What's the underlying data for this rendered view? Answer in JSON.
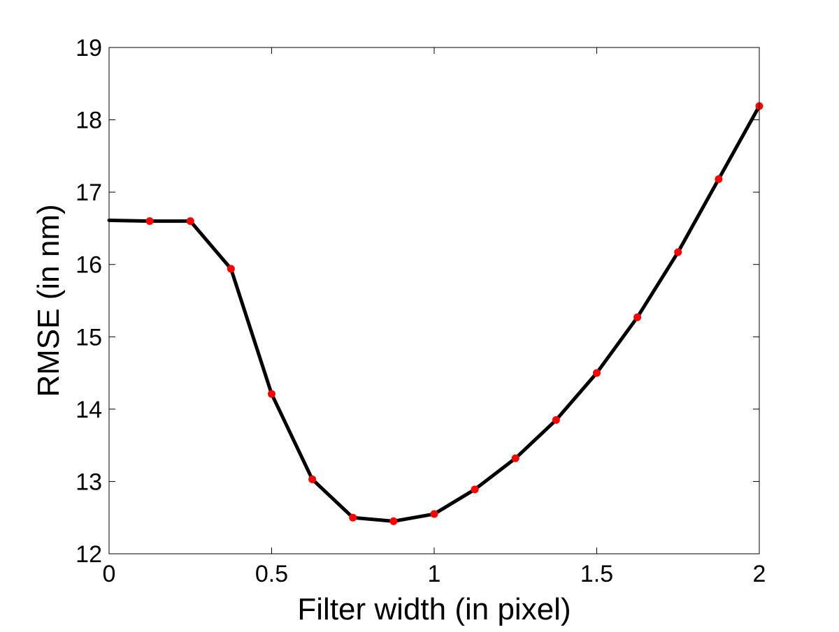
{
  "chart_data": {
    "type": "line",
    "title": "",
    "xlabel": "Filter width (in pixel)",
    "ylabel": "RMSE (in nm)",
    "xlim": [
      0,
      2
    ],
    "ylim": [
      12,
      19
    ],
    "xticks": [
      0,
      0.5,
      1,
      1.5,
      2
    ],
    "xtick_labels": [
      "0",
      "0.5",
      "1",
      "1.5",
      "2"
    ],
    "yticks": [
      12,
      13,
      14,
      15,
      16,
      17,
      18,
      19
    ],
    "ytick_labels": [
      "12",
      "13",
      "14",
      "15",
      "16",
      "17",
      "18",
      "19"
    ],
    "grid": false,
    "legend": "none",
    "line_color": "#000000",
    "marker_color": "#ff0000",
    "x": [
      0,
      0.125,
      0.25,
      0.375,
      0.5,
      0.625,
      0.75,
      0.875,
      1,
      1.125,
      1.25,
      1.375,
      1.5,
      1.625,
      1.75,
      1.875,
      2
    ],
    "series": [
      {
        "values": [
          16.61,
          16.6,
          16.6,
          15.94,
          14.21,
          13.03,
          12.5,
          12.45,
          12.55,
          12.89,
          13.32,
          13.85,
          14.5,
          15.27,
          16.17,
          17.18,
          18.19
        ]
      }
    ],
    "marker_x": [
      0.125,
      0.25,
      0.375,
      0.5,
      0.625,
      0.75,
      0.875,
      1,
      1.125,
      1.25,
      1.375,
      1.5,
      1.625,
      1.75,
      1.875,
      2
    ]
  }
}
